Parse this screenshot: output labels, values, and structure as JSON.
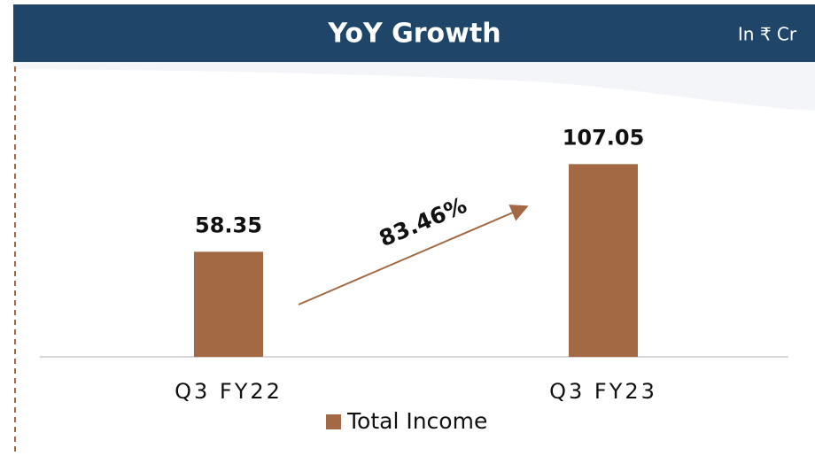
{
  "chart_data": {
    "type": "bar",
    "title": "YoY Growth",
    "unit_label": "In ₹ Cr",
    "categories": [
      "Q3 FY22",
      "Q3 FY23"
    ],
    "series": [
      {
        "name": "Total Income",
        "color": "#a36944",
        "values": [
          58.35,
          107.05
        ]
      }
    ],
    "annotation": "83.46%",
    "ylim": [
      0,
      120
    ]
  }
}
